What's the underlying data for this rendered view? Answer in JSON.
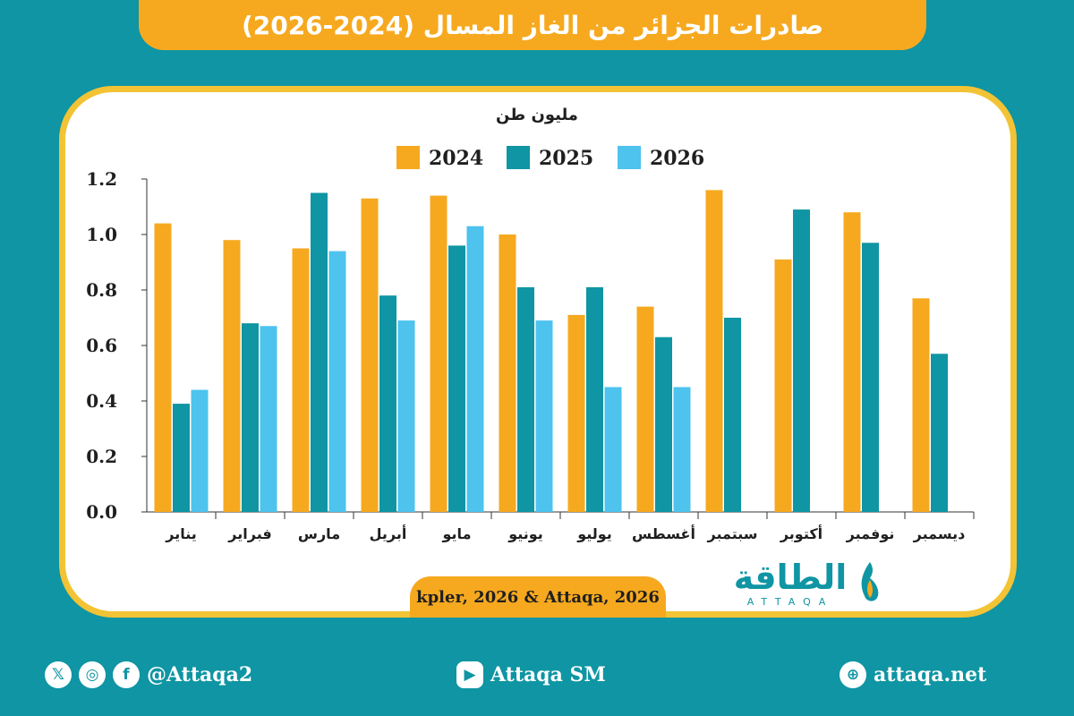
{
  "header": {
    "title": "صادرات الجزائر من الغاز المسال (2024-2026)"
  },
  "chart_data": {
    "type": "bar",
    "title": "صادرات الجزائر من الغاز المسال (2024-2026)",
    "ylabel": "مليون طن",
    "ylim": [
      0,
      1.2
    ],
    "yticks": [
      "0.0",
      "0.2",
      "0.4",
      "0.6",
      "0.8",
      "1.0",
      "1.2"
    ],
    "categories": [
      "يناير",
      "فبراير",
      "مارس",
      "أبريل",
      "مايو",
      "يونيو",
      "يوليو",
      "أغسطس",
      "سبتمبر",
      "أكتوبر",
      "نوفمبر",
      "ديسمبر"
    ],
    "series": [
      {
        "name": "2024",
        "color": "#f6a91f",
        "values": [
          1.04,
          0.98,
          0.95,
          1.13,
          1.14,
          1.0,
          0.71,
          0.74,
          1.16,
          0.91,
          1.08,
          0.77
        ]
      },
      {
        "name": "2025",
        "color": "#0f95a3",
        "values": [
          0.39,
          0.68,
          1.15,
          0.78,
          0.96,
          0.81,
          0.81,
          0.63,
          0.7,
          1.09,
          0.97,
          0.57
        ]
      },
      {
        "name": "2026",
        "color": "#4dc3ee",
        "values": [
          0.44,
          0.67,
          0.94,
          0.69,
          1.03,
          0.69,
          0.45,
          0.45,
          null,
          null,
          null,
          null
        ]
      }
    ],
    "legend_position": "top",
    "grid": false
  },
  "source": "kpler, 2026 & Attaqa, 2026",
  "brand": {
    "arabic": "الطاقة",
    "latin": "ATTAQA"
  },
  "footer": {
    "social_handle": "@Attaqa2",
    "youtube": "Attaqa SM",
    "website": "attaqa.net"
  }
}
